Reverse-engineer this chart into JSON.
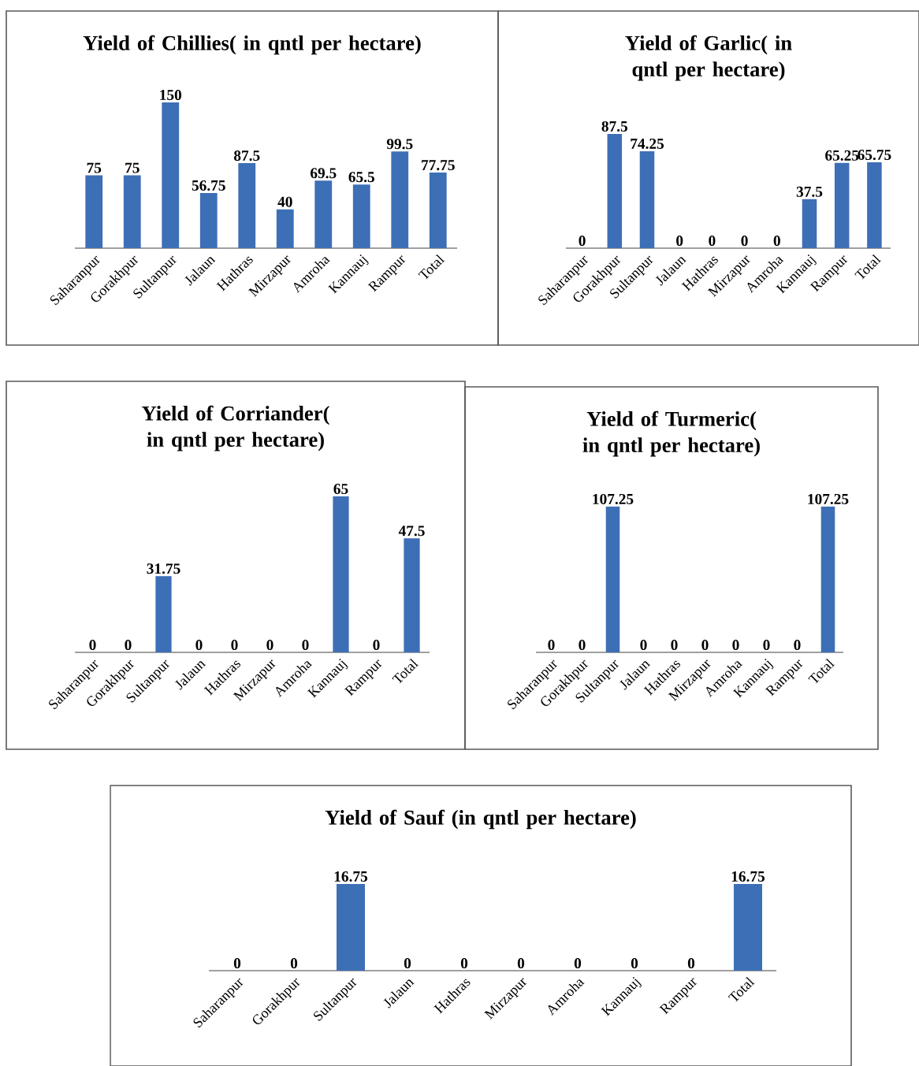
{
  "chart_data": [
    {
      "type": "bar",
      "title": "Yield  of Chillies( in qntl per hectare)",
      "categories": [
        "Saharanpur",
        "Gorakhpur",
        "Sultanpur",
        "Jalaun",
        "Hathras",
        "Mirzapur",
        "Amroha",
        "Kannauj",
        "Rampur",
        "Total"
      ],
      "values": [
        75,
        75,
        150,
        56.75,
        87.5,
        40,
        69.5,
        65.5,
        99.5,
        77.75
      ],
      "color": "#3d6fb6",
      "data_labels": true
    },
    {
      "type": "bar",
      "title": "Yield  of Garlic( in qntl per hectare)",
      "categories": [
        "Saharanpur",
        "Gorakhpur",
        "Sultanpur",
        "Jalaun",
        "Hathras",
        "Mirzapur",
        "Amroha",
        "Kannauj",
        "Rampur",
        "Total"
      ],
      "values": [
        0,
        87.5,
        74.25,
        0,
        0,
        0,
        0,
        37.5,
        65.25,
        65.75
      ],
      "color": "#3d6fb6",
      "data_labels": true
    },
    {
      "type": "bar",
      "title": "Yield of Corriander( in qntl per hectare)",
      "categories": [
        "Saharanpur",
        "Gorakhpur",
        "Sultanpur",
        "Jalaun",
        "Hathras",
        "Mirzapur",
        "Amroha",
        "Kannauj",
        "Rampur",
        "Total"
      ],
      "values": [
        0,
        0,
        31.75,
        0,
        0,
        0,
        0,
        65,
        0,
        47.5
      ],
      "color": "#3d6fb6",
      "data_labels": true
    },
    {
      "type": "bar",
      "title": "Yield of Turmeric( in qntl per hectare)",
      "categories": [
        "Saharanpur",
        "Gorakhpur",
        "Sultanpur",
        "Jalaun",
        "Hathras",
        "Mirzapur",
        "Amroha",
        "Kannauj",
        "Rampur",
        "Total"
      ],
      "values": [
        0,
        0,
        107.25,
        0,
        0,
        0,
        0,
        0,
        0,
        107.25
      ],
      "color": "#3d6fb6",
      "data_labels": true
    },
    {
      "type": "bar",
      "title": "Yield of Sauf (in qntl per hectare)",
      "categories": [
        "Saharanpur",
        "Gorakhpur",
        "Sultanpur",
        "Jalaun",
        "Hathras",
        "Mirzapur",
        "Amroha",
        "Kannauj",
        "Rampur",
        "Total"
      ],
      "values": [
        0,
        0,
        16.75,
        0,
        0,
        0,
        0,
        0,
        0,
        16.75
      ],
      "color": "#3d6fb6",
      "data_labels": true
    }
  ]
}
